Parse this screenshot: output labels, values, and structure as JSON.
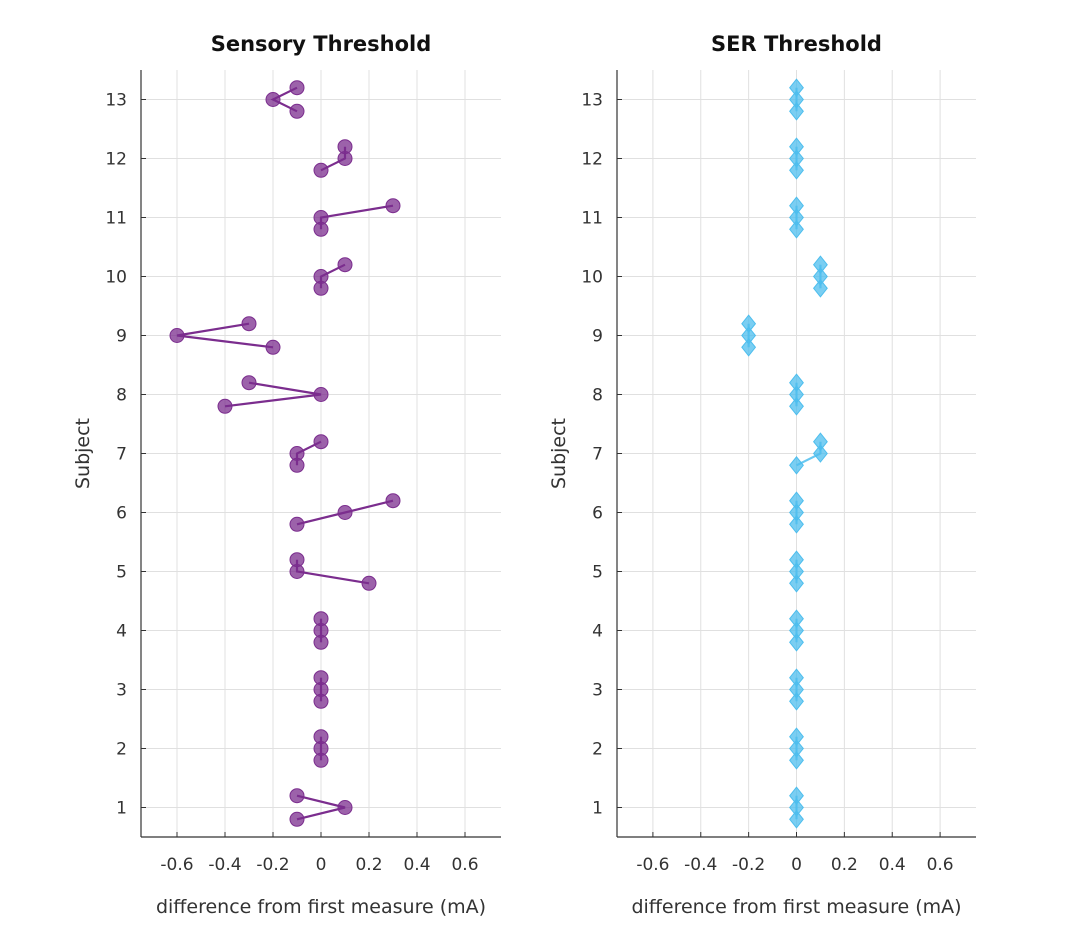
{
  "chart_data": [
    {
      "type": "line",
      "title": "Sensory Threshold",
      "xlabel": "difference from first measure (mA)",
      "ylabel": "Subject",
      "xlim": [
        -0.75,
        0.75
      ],
      "ylim": [
        0.5,
        13.5
      ],
      "xticks": [
        -0.6,
        -0.4,
        -0.2,
        0,
        0.2,
        0.4,
        0.6
      ],
      "xtick_labels": [
        "-0.6",
        "-0.4",
        "-0.2",
        "0",
        "0.2",
        "0.4",
        "0.6"
      ],
      "yticks": [
        1,
        2,
        3,
        4,
        5,
        6,
        7,
        8,
        9,
        10,
        11,
        12,
        13
      ],
      "grid": true,
      "marker": "circle",
      "color": "#7B2D8E",
      "subjects": [
        {
          "subject": 1,
          "points": [
            {
              "x": -0.1,
              "y": 0.8
            },
            {
              "x": 0.1,
              "y": 1.0
            },
            {
              "x": -0.1,
              "y": 1.2
            }
          ]
        },
        {
          "subject": 2,
          "points": [
            {
              "x": 0.0,
              "y": 1.8
            },
            {
              "x": 0.0,
              "y": 2.0
            },
            {
              "x": 0.0,
              "y": 2.2
            }
          ]
        },
        {
          "subject": 3,
          "points": [
            {
              "x": 0.0,
              "y": 2.8
            },
            {
              "x": 0.0,
              "y": 3.0
            },
            {
              "x": 0.0,
              "y": 3.2
            }
          ]
        },
        {
          "subject": 4,
          "points": [
            {
              "x": 0.0,
              "y": 3.8
            },
            {
              "x": 0.0,
              "y": 4.0
            },
            {
              "x": 0.0,
              "y": 4.2
            }
          ]
        },
        {
          "subject": 5,
          "points": [
            {
              "x": 0.2,
              "y": 4.8
            },
            {
              "x": -0.1,
              "y": 5.0
            },
            {
              "x": -0.1,
              "y": 5.2
            }
          ]
        },
        {
          "subject": 6,
          "points": [
            {
              "x": -0.1,
              "y": 5.8
            },
            {
              "x": 0.1,
              "y": 6.0
            },
            {
              "x": 0.3,
              "y": 6.2
            }
          ]
        },
        {
          "subject": 7,
          "points": [
            {
              "x": -0.1,
              "y": 6.8
            },
            {
              "x": -0.1,
              "y": 7.0
            },
            {
              "x": 0.0,
              "y": 7.2
            }
          ]
        },
        {
          "subject": 8,
          "points": [
            {
              "x": -0.4,
              "y": 7.8
            },
            {
              "x": 0.0,
              "y": 8.0
            },
            {
              "x": -0.3,
              "y": 8.2
            }
          ]
        },
        {
          "subject": 9,
          "points": [
            {
              "x": -0.2,
              "y": 8.8
            },
            {
              "x": -0.6,
              "y": 9.0
            },
            {
              "x": -0.3,
              "y": 9.2
            }
          ]
        },
        {
          "subject": 10,
          "points": [
            {
              "x": 0.0,
              "y": 9.8
            },
            {
              "x": 0.0,
              "y": 10.0
            },
            {
              "x": 0.1,
              "y": 10.2
            }
          ]
        },
        {
          "subject": 11,
          "points": [
            {
              "x": 0.0,
              "y": 10.8
            },
            {
              "x": 0.0,
              "y": 11.0
            },
            {
              "x": 0.3,
              "y": 11.2
            }
          ]
        },
        {
          "subject": 12,
          "points": [
            {
              "x": 0.0,
              "y": 11.8
            },
            {
              "x": 0.1,
              "y": 12.0
            },
            {
              "x": 0.1,
              "y": 12.2
            }
          ]
        },
        {
          "subject": 13,
          "points": [
            {
              "x": -0.1,
              "y": 12.8
            },
            {
              "x": -0.2,
              "y": 13.0
            },
            {
              "x": -0.1,
              "y": 13.2
            }
          ]
        }
      ]
    },
    {
      "type": "line",
      "title": "SER Threshold",
      "xlabel": "difference from first measure (mA)",
      "ylabel": "Subject",
      "xlim": [
        -0.75,
        0.75
      ],
      "ylim": [
        0.5,
        13.5
      ],
      "xticks": [
        -0.6,
        -0.4,
        -0.2,
        0,
        0.2,
        0.4,
        0.6
      ],
      "xtick_labels": [
        "-0.6",
        "-0.4",
        "-0.2",
        "0",
        "0.2",
        "0.4",
        "0.6"
      ],
      "yticks": [
        1,
        2,
        3,
        4,
        5,
        6,
        7,
        8,
        9,
        10,
        11,
        12,
        13
      ],
      "grid": true,
      "marker": "diamond",
      "color": "#4DBEEE",
      "subjects": [
        {
          "subject": 1,
          "points": [
            {
              "x": 0.0,
              "y": 0.8
            },
            {
              "x": 0.0,
              "y": 1.0
            },
            {
              "x": 0.0,
              "y": 1.2
            }
          ]
        },
        {
          "subject": 2,
          "points": [
            {
              "x": 0.0,
              "y": 1.8
            },
            {
              "x": 0.0,
              "y": 2.0
            },
            {
              "x": 0.0,
              "y": 2.2
            }
          ]
        },
        {
          "subject": 3,
          "points": [
            {
              "x": 0.0,
              "y": 2.8
            },
            {
              "x": 0.0,
              "y": 3.0
            },
            {
              "x": 0.0,
              "y": 3.2
            }
          ]
        },
        {
          "subject": 4,
          "points": [
            {
              "x": 0.0,
              "y": 3.8
            },
            {
              "x": 0.0,
              "y": 4.0
            },
            {
              "x": 0.0,
              "y": 4.2
            }
          ]
        },
        {
          "subject": 5,
          "points": [
            {
              "x": 0.0,
              "y": 4.8
            },
            {
              "x": 0.0,
              "y": 5.0
            },
            {
              "x": 0.0,
              "y": 5.2
            }
          ]
        },
        {
          "subject": 6,
          "points": [
            {
              "x": 0.0,
              "y": 5.8
            },
            {
              "x": 0.0,
              "y": 6.0
            },
            {
              "x": 0.0,
              "y": 6.2
            }
          ]
        },
        {
          "subject": 7,
          "points": [
            {
              "x": 0.0,
              "y": 6.8
            },
            {
              "x": 0.1,
              "y": 7.0
            },
            {
              "x": 0.1,
              "y": 7.2
            }
          ]
        },
        {
          "subject": 8,
          "points": [
            {
              "x": 0.0,
              "y": 7.8
            },
            {
              "x": 0.0,
              "y": 8.0
            },
            {
              "x": 0.0,
              "y": 8.2
            }
          ]
        },
        {
          "subject": 9,
          "points": [
            {
              "x": -0.2,
              "y": 8.8
            },
            {
              "x": -0.2,
              "y": 9.0
            },
            {
              "x": -0.2,
              "y": 9.2
            }
          ]
        },
        {
          "subject": 10,
          "points": [
            {
              "x": 0.1,
              "y": 9.8
            },
            {
              "x": 0.1,
              "y": 10.0
            },
            {
              "x": 0.1,
              "y": 10.2
            }
          ]
        },
        {
          "subject": 11,
          "points": [
            {
              "x": 0.0,
              "y": 10.8
            },
            {
              "x": 0.0,
              "y": 11.0
            },
            {
              "x": 0.0,
              "y": 11.2
            }
          ]
        },
        {
          "subject": 12,
          "points": [
            {
              "x": 0.0,
              "y": 11.8
            },
            {
              "x": 0.0,
              "y": 12.0
            },
            {
              "x": 0.0,
              "y": 12.2
            }
          ]
        },
        {
          "subject": 13,
          "points": [
            {
              "x": 0.0,
              "y": 12.8
            },
            {
              "x": 0.0,
              "y": 13.0
            },
            {
              "x": 0.0,
              "y": 13.2
            }
          ]
        }
      ]
    }
  ]
}
